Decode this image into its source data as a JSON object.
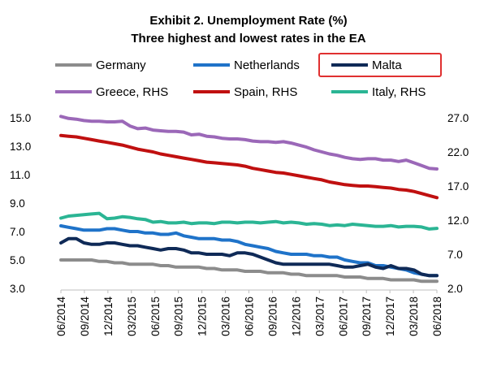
{
  "chart_data": {
    "type": "line",
    "title": "Exhibit 2. Unemployment Rate (%)",
    "subtitle": "Three highest and lowest rates in the EA",
    "xlabel": "",
    "ylabel": "",
    "x_tick_labels": [
      "06/2014",
      "09/2014",
      "12/2014",
      "03/2015",
      "06/2015",
      "09/2015",
      "12/2015",
      "03/2016",
      "06/2016",
      "09/2016",
      "12/2016",
      "03/2017",
      "06/2017",
      "09/2017",
      "12/2017",
      "03/2018",
      "06/2018"
    ],
    "ylim_left": [
      3.0,
      15.0
    ],
    "yticks_left": [
      "15.0",
      "13.0",
      "11.0",
      "9.0",
      "7.0",
      "5.0",
      "3.0"
    ],
    "ylim_right": [
      2.0,
      27.0
    ],
    "yticks_right": [
      "27.0",
      "22.0",
      "17.0",
      "12.0",
      "7.0",
      "2.0"
    ],
    "grid": false,
    "legend_position": "top",
    "highlighted_series": "Malta",
    "highlight_color": "#e03030",
    "series": [
      {
        "name": "Germany",
        "axis": "left",
        "color": "#8c8c8c",
        "values": [
          5.0,
          5.0,
          5.0,
          5.0,
          5.0,
          4.9,
          4.9,
          4.8,
          4.8,
          4.7,
          4.7,
          4.7,
          4.7,
          4.6,
          4.6,
          4.5,
          4.5,
          4.5,
          4.5,
          4.4,
          4.4,
          4.3,
          4.3,
          4.3,
          4.2,
          4.2,
          4.2,
          4.1,
          4.1,
          4.1,
          4.0,
          4.0,
          3.9,
          3.9,
          3.9,
          3.9,
          3.9,
          3.8,
          3.8,
          3.8,
          3.7,
          3.7,
          3.7,
          3.6,
          3.6,
          3.6,
          3.6,
          3.5,
          3.5,
          3.5
        ]
      },
      {
        "name": "Netherlands",
        "axis": "left",
        "color": "#1f73c9",
        "values": [
          7.4,
          7.3,
          7.2,
          7.1,
          7.1,
          7.1,
          7.2,
          7.2,
          7.1,
          7.0,
          7.0,
          6.9,
          6.9,
          6.8,
          6.8,
          6.9,
          6.7,
          6.6,
          6.5,
          6.5,
          6.5,
          6.4,
          6.4,
          6.3,
          6.1,
          6.0,
          5.9,
          5.8,
          5.6,
          5.5,
          5.4,
          5.4,
          5.4,
          5.3,
          5.3,
          5.2,
          5.2,
          5.0,
          4.9,
          4.8,
          4.8,
          4.6,
          4.6,
          4.5,
          4.4,
          4.3,
          4.1,
          4.0,
          3.9,
          3.9
        ]
      },
      {
        "name": "Malta",
        "axis": "left",
        "color": "#0f2a57",
        "values": [
          6.2,
          6.5,
          6.5,
          6.2,
          6.1,
          6.1,
          6.2,
          6.2,
          6.1,
          6.0,
          6.0,
          5.9,
          5.8,
          5.7,
          5.8,
          5.8,
          5.7,
          5.5,
          5.5,
          5.4,
          5.4,
          5.4,
          5.3,
          5.5,
          5.5,
          5.4,
          5.2,
          5.0,
          4.8,
          4.7,
          4.7,
          4.7,
          4.7,
          4.7,
          4.7,
          4.7,
          4.6,
          4.5,
          4.5,
          4.6,
          4.7,
          4.5,
          4.4,
          4.6,
          4.4,
          4.4,
          4.3,
          4.0,
          3.9,
          3.9
        ]
      },
      {
        "name": "Greece, RHS",
        "axis": "right",
        "color": "#9b68b8",
        "values": [
          27.2,
          26.9,
          26.8,
          26.6,
          26.5,
          26.5,
          26.4,
          26.4,
          26.5,
          25.8,
          25.4,
          25.5,
          25.2,
          25.1,
          25.0,
          25.0,
          24.9,
          24.5,
          24.6,
          24.3,
          24.2,
          24.0,
          23.9,
          23.9,
          23.8,
          23.6,
          23.5,
          23.5,
          23.4,
          23.5,
          23.3,
          23.0,
          22.7,
          22.3,
          22.0,
          21.7,
          21.5,
          21.2,
          21.0,
          20.9,
          21.0,
          21.0,
          20.8,
          20.8,
          20.6,
          20.8,
          20.4,
          20.0,
          19.6,
          19.5
        ]
      },
      {
        "name": "Spain, RHS",
        "axis": "right",
        "color": "#c01010",
        "values": [
          24.4,
          24.3,
          24.2,
          24.0,
          23.8,
          23.6,
          23.4,
          23.2,
          23.0,
          22.7,
          22.4,
          22.2,
          22.0,
          21.7,
          21.5,
          21.3,
          21.1,
          20.9,
          20.7,
          20.5,
          20.4,
          20.3,
          20.2,
          20.1,
          19.9,
          19.6,
          19.4,
          19.2,
          19.0,
          18.9,
          18.7,
          18.5,
          18.3,
          18.1,
          17.9,
          17.6,
          17.4,
          17.2,
          17.1,
          17.0,
          17.0,
          16.9,
          16.8,
          16.7,
          16.5,
          16.4,
          16.2,
          15.9,
          15.6,
          15.3
        ]
      },
      {
        "name": "Italy, RHS",
        "axis": "right",
        "color": "#2bb594",
        "values": [
          12.3,
          12.6,
          12.7,
          12.8,
          12.9,
          13.0,
          12.2,
          12.3,
          12.5,
          12.4,
          12.2,
          12.1,
          11.7,
          11.8,
          11.6,
          11.6,
          11.7,
          11.5,
          11.6,
          11.6,
          11.5,
          11.7,
          11.7,
          11.6,
          11.7,
          11.7,
          11.6,
          11.7,
          11.8,
          11.6,
          11.7,
          11.6,
          11.4,
          11.5,
          11.4,
          11.2,
          11.3,
          11.2,
          11.4,
          11.3,
          11.2,
          11.1,
          11.1,
          11.2,
          11.0,
          11.1,
          11.1,
          11.0,
          10.7,
          10.8
        ]
      }
    ]
  }
}
